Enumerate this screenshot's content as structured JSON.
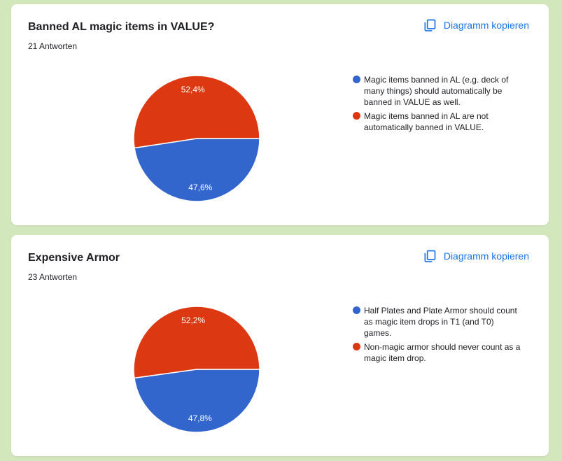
{
  "copy_label": "Diagramm kopieren",
  "colors": {
    "series1": "#3366cc",
    "series2": "#dc3912",
    "link": "#1a73e8"
  },
  "cards": [
    {
      "title": "Banned AL magic items in VALUE?",
      "count": "21 Antworten",
      "legend": [
        "Magic items banned in AL (e.g. deck of many things) should automatically be banned in VALUE as well.",
        "Magic items banned in AL are not automatically banned in VALUE."
      ],
      "slice_labels": [
        "47,6%",
        "52,4%"
      ]
    },
    {
      "title": "Expensive Armor",
      "count": "23 Antworten",
      "legend": [
        "Half Plates and Plate Armor should count as magic item drops in T1 (and T0) games.",
        "Non-magic armor should never count as a magic item drop."
      ],
      "slice_labels": [
        "47,8%",
        "52,2%"
      ]
    }
  ],
  "chart_data": [
    {
      "type": "pie",
      "title": "Banned AL magic items in VALUE?",
      "categories": [
        "Magic items banned in AL (e.g. deck of many things) should automatically be banned in VALUE as well.",
        "Magic items banned in AL are not automatically banned in VALUE."
      ],
      "values": [
        47.6,
        52.4
      ],
      "legend": "right"
    },
    {
      "type": "pie",
      "title": "Expensive Armor",
      "categories": [
        "Half Plates and Plate Armor should count as magic item drops in T1 (and T0) games.",
        "Non-magic armor should never count as a magic item drop."
      ],
      "values": [
        47.8,
        52.2
      ],
      "legend": "right"
    }
  ]
}
